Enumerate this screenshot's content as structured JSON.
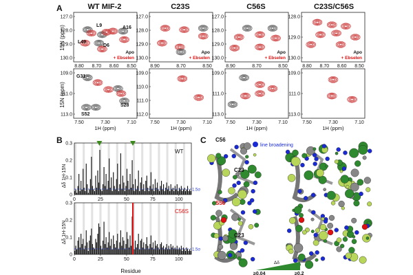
{
  "panel_labels": {
    "a": "A",
    "b": "B",
    "c": "C"
  },
  "nmr": {
    "columns": [
      "WT MIF-2",
      "C23S",
      "C56S",
      "C23S/C56S"
    ],
    "y_label": "15N (ppm)",
    "x_label": "1H (ppm)",
    "legend_apo": "Apo",
    "legend_ebselen": "+ Ebselen",
    "top_x_ticks": [
      "8.80",
      "8.70",
      "8.60",
      "8.50"
    ],
    "top_x_ticks_alt": [
      "8.90",
      "8.70",
      "8.50"
    ],
    "bottom_x_ticks": [
      "7.50",
      "7.30",
      "7.10"
    ],
    "top_y_ticks_wt": [
      "127.0",
      "128.0",
      "129.0",
      "130.0"
    ],
    "top_y_ticks_c23s": [
      "127.0",
      "128.0",
      "129.0",
      "130.0"
    ],
    "top_y_ticks_c56s": [
      "127.0",
      "128.0",
      "129.0",
      "130.0"
    ],
    "top_y_ticks_dbl": [
      "128.0",
      "129.0",
      "130.0"
    ],
    "bottom_y_ticks_wt": [
      "109.0",
      "111.0",
      "113.0"
    ],
    "bottom_y_ticks_c23s": [
      "109.0",
      "110.0",
      "111.0",
      "112.0"
    ],
    "bottom_y_ticks_c56s": [
      "109.0",
      "111.0",
      "113.0"
    ],
    "bottom_y_ticks_dbl": [
      "109.0",
      "111.0",
      "113.0"
    ],
    "residue_labels": {
      "l9": "L9",
      "a16": "A16",
      "l49": "L49",
      "d6": "D6",
      "g31": "G31",
      "s28": "S28",
      "s52": "S52"
    }
  },
  "chart_data": [
    {
      "type": "bar",
      "title": "WT",
      "xlabel": "",
      "ylabel": "Δδ 1H-15N",
      "ylim": [
        0,
        0.3
      ],
      "yticks": [
        "0",
        "0.1",
        "0.2",
        "0.3"
      ],
      "xticks": [
        "0",
        "25",
        "50",
        "75",
        "100"
      ],
      "threshold_label": "1.5σ",
      "threshold_value": 0.032,
      "markers_at": [
        24,
        56
      ],
      "series": [
        {
          "name": "WT",
          "values": [
            0.02,
            0.03,
            0.01,
            0.05,
            0.12,
            0.02,
            0.08,
            0.03,
            0.15,
            0.04,
            0.02,
            0.18,
            0.06,
            0.01,
            0.03,
            0.09,
            0.22,
            0.05,
            0.03,
            0.02,
            0.11,
            0.04,
            0.14,
            0.07,
            0.26,
            0.03,
            0.02,
            0.06,
            0.16,
            0.05,
            0.12,
            0.03,
            0.08,
            0.21,
            0.04,
            0.1,
            0.02,
            0.13,
            0.05,
            0.03,
            0.09,
            0.18,
            0.02,
            0.06,
            0.24,
            0.03,
            0.11,
            0.07,
            0.02,
            0.05,
            0.15,
            0.08,
            0.03,
            0.12,
            0.04,
            0.2,
            0.06,
            0.02,
            0.09,
            0.03,
            0.05,
            0.14,
            0.02,
            0.07,
            0.1,
            0.03,
            0.06,
            0.02,
            0.08,
            0.11,
            0.04,
            0.02,
            0.05,
            0.13,
            0.03,
            0.06,
            0.02,
            0.09,
            0.04,
            0.07,
            0.03,
            0.02,
            0.05,
            0.08,
            0.03,
            0.06,
            0.02,
            0.04,
            0.07,
            0.03,
            0.05,
            0.02,
            0.06,
            0.03,
            0.04,
            0.02,
            0.05,
            0.03,
            0.06,
            0.02,
            0.04,
            0.03,
            0.05,
            0.02,
            0.03,
            0.04,
            0.02,
            0.03,
            0.05,
            0.02,
            0.03,
            0.02
          ]
        }
      ]
    },
    {
      "type": "bar",
      "title": "C56S",
      "xlabel": "Residue",
      "ylabel": "Δδ 1H-15N",
      "ylim": [
        0,
        0.3
      ],
      "yticks": [
        "0",
        "0.1",
        "0.2",
        "0.3"
      ],
      "xticks": [
        "0",
        "25",
        "50",
        "75",
        "100"
      ],
      "threshold_label": "1.5σ",
      "threshold_value": 0.032,
      "mutation_at": 56,
      "series": [
        {
          "name": "C56S",
          "values": [
            0.02,
            0.05,
            0.03,
            0.08,
            0.1,
            0.04,
            0.12,
            0.06,
            0.09,
            0.03,
            0.05,
            0.14,
            0.07,
            0.02,
            0.08,
            0.11,
            0.15,
            0.06,
            0.04,
            0.03,
            0.09,
            0.07,
            0.12,
            0.18,
            0.16,
            0.05,
            0.03,
            0.08,
            0.19,
            0.06,
            0.1,
            0.04,
            0.07,
            0.13,
            0.05,
            0.09,
            0.03,
            0.11,
            0.06,
            0.04,
            0.08,
            0.12,
            0.03,
            0.07,
            0.14,
            0.05,
            0.1,
            0.08,
            0.03,
            0.06,
            0.13,
            0.09,
            0.04,
            0.11,
            0.05,
            0.22,
            0.07,
            0.03,
            0.08,
            0.04,
            0.06,
            0.12,
            0.03,
            0.08,
            0.09,
            0.04,
            0.07,
            0.03,
            0.06,
            0.1,
            0.05,
            0.03,
            0.06,
            0.11,
            0.04,
            0.07,
            0.03,
            0.08,
            0.05,
            0.06,
            0.04,
            0.03,
            0.06,
            0.07,
            0.04,
            0.05,
            0.03,
            0.04,
            0.06,
            0.03,
            0.05,
            0.03,
            0.06,
            0.04,
            0.05,
            0.03,
            0.04,
            0.03,
            0.05,
            0.03,
            0.04,
            0.03,
            0.05,
            0.02,
            0.04,
            0.03,
            0.02,
            0.04,
            0.03,
            0.02,
            0.03,
            0.02
          ]
        }
      ]
    }
  ],
  "structure": {
    "legend_line_broadening": "line broadening",
    "label_c56": "C56",
    "label_c23_top": "C23",
    "label_s56": "S56",
    "label_c23_bottom": "C23",
    "scale_min": "≥0.04",
    "scale_max": "≥0.2",
    "scale_symbol": "Δδ",
    "colors": {
      "broadening": "#1a2bd6",
      "green_dark": "#2f8a2f",
      "green_light": "#b7d65a",
      "mutation": "#e01010"
    }
  }
}
